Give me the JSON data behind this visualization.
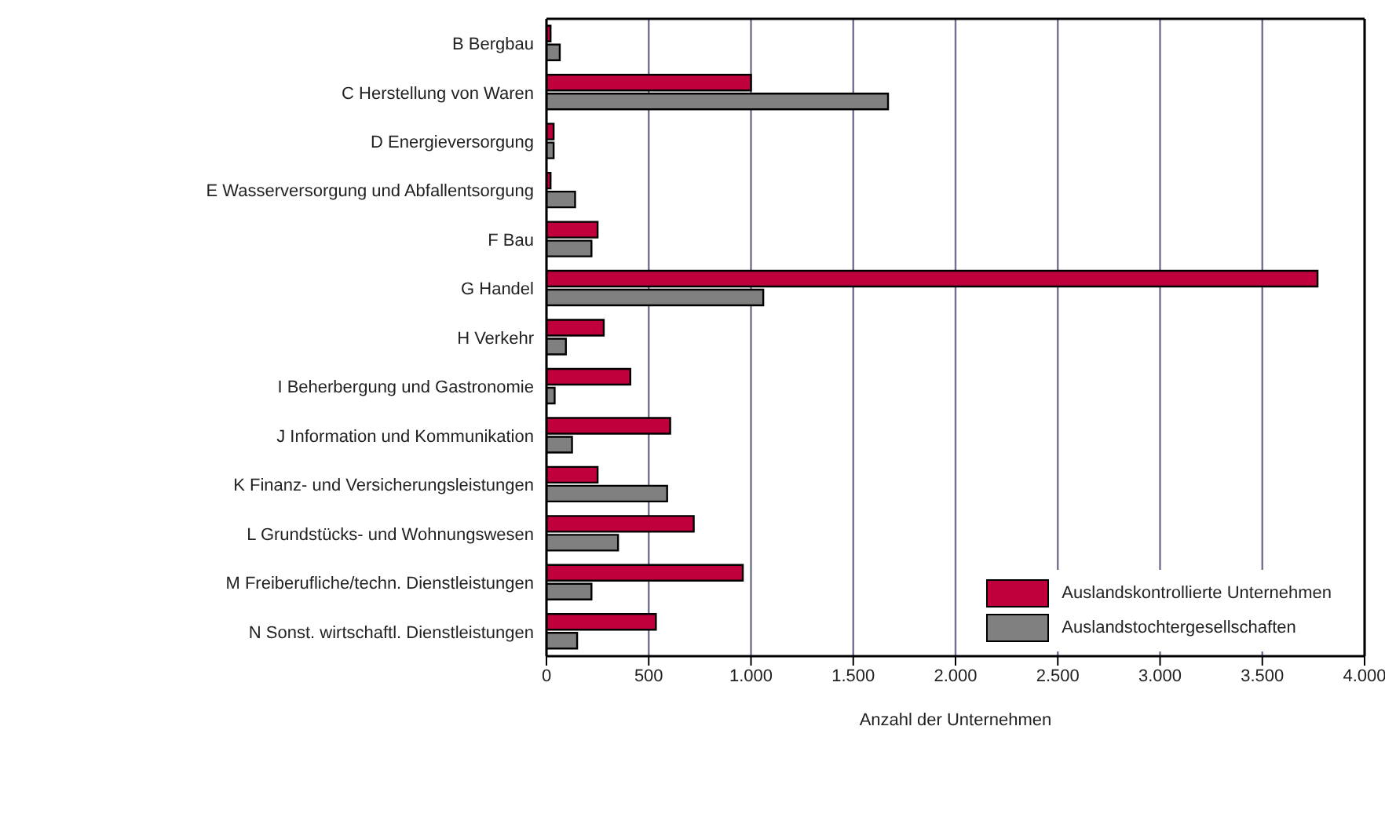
{
  "chart_data": {
    "type": "bar",
    "orientation": "horizontal",
    "xlabel": "Anzahl der Unternehmen",
    "categories": [
      "B Bergbau",
      "C Herstellung von Waren",
      "D Energieversorgung",
      "E Wasserversorgung und Abfallentsorgung",
      "F Bau",
      "G Handel",
      "H Verkehr",
      "I Beherbergung und Gastronomie",
      "J Information und Kommunikation",
      "K Finanz- und Versicherungsleistungen",
      "L Grundstücks- und Wohnungswesen",
      "M Freiberufliche/techn. Dienstleistungen",
      "N Sonst. wirtschaftl. Dienstleistungen"
    ],
    "series": [
      {
        "name": "Auslandskontrollierte Unternehmen",
        "color": "#c0003c",
        "values": [
          20,
          1000,
          35,
          20,
          250,
          3770,
          280,
          410,
          605,
          250,
          720,
          960,
          535
        ]
      },
      {
        "name": "Auslandstochtergesellschaften",
        "color": "#808080",
        "values": [
          65,
          1670,
          35,
          140,
          220,
          1060,
          95,
          40,
          125,
          590,
          350,
          220,
          150
        ]
      }
    ],
    "xlim": [
      0,
      4000
    ],
    "xticks": [
      0,
      500,
      {
        "value": 1000,
        "label": "1.000"
      },
      {
        "value": 1500,
        "label": "1.500"
      },
      {
        "value": 2000,
        "label": "2.000"
      },
      {
        "value": 2500,
        "label": "2.500"
      },
      {
        "value": 3000,
        "label": "3.000"
      },
      {
        "value": 3500,
        "label": "3.500"
      },
      {
        "value": 4000,
        "label": "4.000"
      }
    ],
    "grid": "x",
    "legend": "bottom right"
  }
}
